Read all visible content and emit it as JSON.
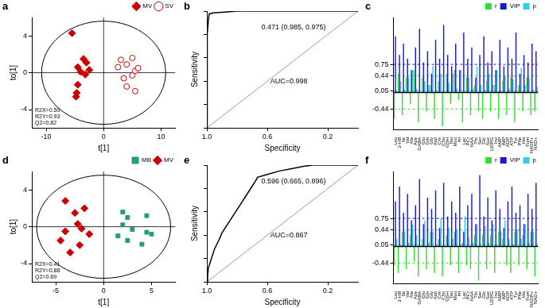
{
  "chart_data": [
    {
      "type": "scatter",
      "title": "a",
      "x_label": "t[1]",
      "y_label": "to[1]",
      "xlim": [
        -12.5,
        12.5
      ],
      "xticks": [
        -10,
        0,
        10
      ],
      "ylim": [
        -6,
        6
      ],
      "yticks": [
        -4,
        0,
        4
      ],
      "legend": "top-right",
      "ellipse_radii": [
        10.8,
        5.6
      ],
      "annotations": [
        "R2X=0.50",
        "R2Y=0.93",
        "Q2=0.82"
      ],
      "series": [
        {
          "name": "MV",
          "color": "#cc0000",
          "marker": "diamond",
          "values": [
            [
              -5.5,
              4.3
            ],
            [
              -4.5,
              0.6
            ],
            [
              -3.5,
              1.5
            ],
            [
              -3.0,
              1.1
            ],
            [
              -4.0,
              0.1
            ],
            [
              -3.2,
              -0.2
            ],
            [
              -2.5,
              0.3
            ],
            [
              -4.5,
              -1.3
            ],
            [
              -4.7,
              -2.2
            ],
            [
              -4.8,
              -2.6
            ]
          ]
        },
        {
          "name": "SV",
          "color": "#cc0000",
          "marker": "open-circle",
          "values": [
            [
              3.0,
              1.4
            ],
            [
              4.0,
              0.9
            ],
            [
              5.0,
              1.6
            ],
            [
              2.5,
              0.6
            ],
            [
              5.5,
              0.2
            ],
            [
              5.0,
              -0.3
            ],
            [
              3.5,
              -0.6
            ],
            [
              4.0,
              -1.5
            ],
            [
              5.5,
              -2.0
            ],
            [
              6.0,
              0.5
            ]
          ]
        }
      ]
    },
    {
      "type": "line",
      "title": "b",
      "x_label": "Specificity",
      "y_label": "Sensitivity",
      "xlim": [
        1,
        0
      ],
      "xticks": [
        {
          "value": 1,
          "label": "1.0"
        },
        0.6,
        0.2
      ],
      "ylim": [
        0,
        1
      ],
      "yticks": [
        0,
        0.2,
        0.4,
        0.6,
        0.8,
        1
      ],
      "tick_labels": "x",
      "annotations": [
        "0.471 (0.985, 0.975)",
        "AUC=0.998"
      ],
      "series": [
        {
          "color": "#000000",
          "values": [
            [
              1,
              0
            ],
            [
              1,
              0.5
            ],
            [
              0.995,
              0.8
            ],
            [
              0.99,
              0.92
            ],
            [
              0.985,
              0.975
            ],
            [
              0.96,
              0.985
            ],
            [
              0.9,
              0.99
            ],
            [
              0.8,
              1
            ],
            [
              0,
              1
            ]
          ]
        },
        {
          "color": "#999999",
          "values": [
            [
              1,
              0
            ],
            [
              0,
              1
            ]
          ]
        }
      ]
    },
    {
      "type": "bar",
      "title": "c",
      "categories": [
        "Leu",
        "2-HB",
        "Ile",
        "Val",
        "Ala",
        "Ace",
        "GABA",
        "Glu",
        "Gln",
        "Gly",
        "Asp",
        "Cre",
        "Cho",
        "GSH",
        "Tau",
        "Myo",
        "mI",
        "Lac",
        "PCr",
        "NAA",
        "Thr",
        "Ser",
        "Glc",
        "Suc",
        "UDPG",
        "Ino",
        "AMP",
        "IMP",
        "ADP",
        "ATP",
        "Tyr",
        "Phe",
        "His",
        "Fum",
        "NADP+",
        "NAD+"
      ],
      "ylim": [
        -1,
        2
      ],
      "yticks": [
        -0.44,
        0.05,
        0.44,
        0.75
      ],
      "grid": true,
      "legend": "top-right",
      "series": [
        {
          "name": "r",
          "color": "#33dd33",
          "values": [
            -0.7,
            0.5,
            -0.6,
            0.4,
            -0.3,
            0.6,
            -0.8,
            0.4,
            -0.5,
            0.2,
            -0.7,
            0.3,
            -0.9,
            0.5,
            -0.3,
            0.6,
            -0.2,
            -0.8,
            0.4,
            -0.6,
            0.2,
            -0.5,
            -0.7,
            0.3,
            -0.5,
            0.2,
            -0.7,
            0.3,
            -0.6,
            0.4,
            -0.8,
            0.2,
            -0.5,
            0.4,
            -0.6,
            -0.5
          ]
        },
        {
          "name": "VIP",
          "color": "#1a1acc",
          "values": [
            1.5,
            1.0,
            1.3,
            0.9,
            0.6,
            1.2,
            1.7,
            0.8,
            1.1,
            0.5,
            1.4,
            0.9,
            1.8,
            1.0,
            0.7,
            1.3,
            0.6,
            1.6,
            0.9,
            1.2,
            0.4,
            1.0,
            1.5,
            0.8,
            1.1,
            0.6,
            1.4,
            0.7,
            1.2,
            0.9,
            1.6,
            0.5,
            1.0,
            0.8,
            1.3,
            1.1
          ]
        },
        {
          "name": "p",
          "color": "#33ccee",
          "values": [
            0.05,
            0.3,
            0.08,
            0.4,
            0.6,
            0.1,
            0.02,
            0.3,
            0.2,
            0.7,
            0.05,
            0.5,
            0.01,
            0.25,
            0.5,
            0.1,
            0.6,
            0.02,
            0.4,
            0.1,
            0.7,
            0.2,
            0.04,
            0.5,
            0.2,
            0.6,
            0.05,
            0.45,
            0.1,
            0.35,
            0.03,
            0.65,
            0.2,
            0.4,
            0.08,
            0.15
          ]
        }
      ]
    },
    {
      "type": "scatter",
      "title": "d",
      "x_label": "t[1]",
      "y_label": "to[1]",
      "xlim": [
        -7.5,
        7.5
      ],
      "xticks": [
        -5,
        0,
        5
      ],
      "ylim": [
        -6,
        6
      ],
      "yticks": [
        -4,
        0,
        4
      ],
      "legend": "top-right",
      "ellipse_radii": [
        7,
        5.6
      ],
      "annotations": [
        "R2X=0.41",
        "R2Y=0.88",
        "Q2=0.69"
      ],
      "series": [
        {
          "name": "MB",
          "color": "#2a9d6e",
          "marker": "square",
          "values": [
            [
              2.0,
              1.6
            ],
            [
              2.5,
              1.0
            ],
            [
              4.5,
              1.2
            ],
            [
              2.0,
              0.2
            ],
            [
              3.0,
              -0.3
            ],
            [
              4.5,
              -0.6
            ],
            [
              2.5,
              -1.5
            ],
            [
              4.0,
              -1.9
            ],
            [
              5.0,
              -0.8
            ],
            [
              1.5,
              -1.0
            ]
          ]
        },
        {
          "name": "MV",
          "color": "#cc0000",
          "marker": "diamond",
          "values": [
            [
              -4.0,
              2.8
            ],
            [
              -3.0,
              1.5
            ],
            [
              -2.0,
              2.0
            ],
            [
              -2.7,
              0.3
            ],
            [
              -2.3,
              -0.2
            ],
            [
              -4.0,
              -0.5
            ],
            [
              -4.5,
              -1.5
            ],
            [
              -2.5,
              -2.0
            ],
            [
              -3.5,
              -2.8
            ],
            [
              -1.5,
              -0.8
            ]
          ]
        }
      ]
    },
    {
      "type": "line",
      "title": "e",
      "x_label": "Specificity",
      "y_label": "Sensitivity",
      "xlim": [
        1,
        0
      ],
      "xticks": [
        {
          "value": 1,
          "label": "1.0"
        },
        0.6,
        0.2
      ],
      "ylim": [
        0,
        1
      ],
      "yticks": [
        0,
        0.2,
        0.4,
        0.6,
        0.8,
        1
      ],
      "tick_labels": "x",
      "annotations": [
        "0.596 (0.665, 0.896)",
        "AUC=0.867"
      ],
      "series": [
        {
          "color": "#000000",
          "values": [
            [
              1,
              0
            ],
            [
              0.995,
              0.05
            ],
            [
              0.99,
              0.12
            ],
            [
              0.97,
              0.2
            ],
            [
              0.95,
              0.28
            ],
            [
              0.92,
              0.36
            ],
            [
              0.9,
              0.42
            ],
            [
              0.86,
              0.5
            ],
            [
              0.82,
              0.58
            ],
            [
              0.78,
              0.66
            ],
            [
              0.74,
              0.74
            ],
            [
              0.7,
              0.82
            ],
            [
              0.68,
              0.86
            ],
            [
              0.665,
              0.896
            ],
            [
              0.6,
              0.92
            ],
            [
              0.52,
              0.95
            ],
            [
              0.44,
              0.97
            ],
            [
              0.36,
              0.99
            ],
            [
              0.3,
              1
            ],
            [
              0,
              1
            ]
          ]
        },
        {
          "color": "#999999",
          "values": [
            [
              1,
              0
            ],
            [
              0,
              1
            ]
          ]
        }
      ]
    },
    {
      "type": "bar",
      "title": "f",
      "categories": [
        "Leu",
        "2-HB",
        "Ile",
        "Val",
        "Ala",
        "Ace",
        "GABA",
        "Glu",
        "Gln",
        "Gly",
        "Asp",
        "Cre",
        "Cho",
        "GSH",
        "Tau",
        "Myo",
        "mI",
        "Lac",
        "PCr",
        "NAA",
        "Thr",
        "Ser",
        "Glc",
        "Suc",
        "UDPG",
        "Ino",
        "AMP",
        "IMP",
        "ADP",
        "ATP",
        "Tyr",
        "Phe",
        "His",
        "Fum",
        "NADP+",
        "NAD+"
      ],
      "ylim": [
        -1,
        2
      ],
      "yticks": [
        -0.44,
        0.05,
        0.44,
        0.75
      ],
      "grid": true,
      "legend": "top-right",
      "series": [
        {
          "name": "r",
          "color": "#33dd33",
          "values": [
            -0.5,
            -0.7,
            0.4,
            -0.6,
            0.3,
            -0.4,
            -0.8,
            0.2,
            -0.6,
            0.4,
            -0.7,
            0.2,
            -0.8,
            0.3,
            -0.5,
            0.4,
            -0.7,
            0.1,
            -0.5,
            -0.6,
            0.3,
            -0.9,
            0.3,
            -0.6,
            0.3,
            -0.7,
            0.4,
            0.2,
            -0.5,
            -0.7,
            0.4,
            -0.5,
            0.3,
            -0.6,
            0.4,
            -0.8
          ]
        },
        {
          "name": "VIP",
          "color": "#1a1acc",
          "values": [
            1.2,
            1.6,
            0.9,
            1.4,
            0.7,
            1.1,
            1.8,
            0.6,
            1.3,
            1.0,
            1.5,
            0.5,
            1.7,
            0.8,
            1.2,
            0.9,
            1.6,
            0.4,
            1.1,
            1.4,
            0.6,
            1.9,
            0.8,
            1.3,
            0.7,
            1.5,
            1.0,
            0.5,
            1.2,
            1.6,
            0.9,
            1.1,
            0.6,
            1.4,
            1.0,
            1.7
          ]
        },
        {
          "name": "p",
          "color": "#33ccee",
          "values": [
            0.2,
            0.05,
            0.4,
            0.1,
            0.6,
            0.3,
            0.02,
            0.7,
            0.1,
            0.4,
            0.05,
            0.75,
            0.02,
            0.5,
            0.2,
            0.45,
            0.05,
            0.8,
            0.25,
            0.1,
            0.6,
            0.01,
            0.55,
            0.1,
            0.6,
            0.04,
            0.4,
            0.7,
            0.2,
            0.06,
            0.45,
            0.2,
            0.6,
            0.1,
            0.4,
            0.03
          ]
        }
      ]
    }
  ]
}
